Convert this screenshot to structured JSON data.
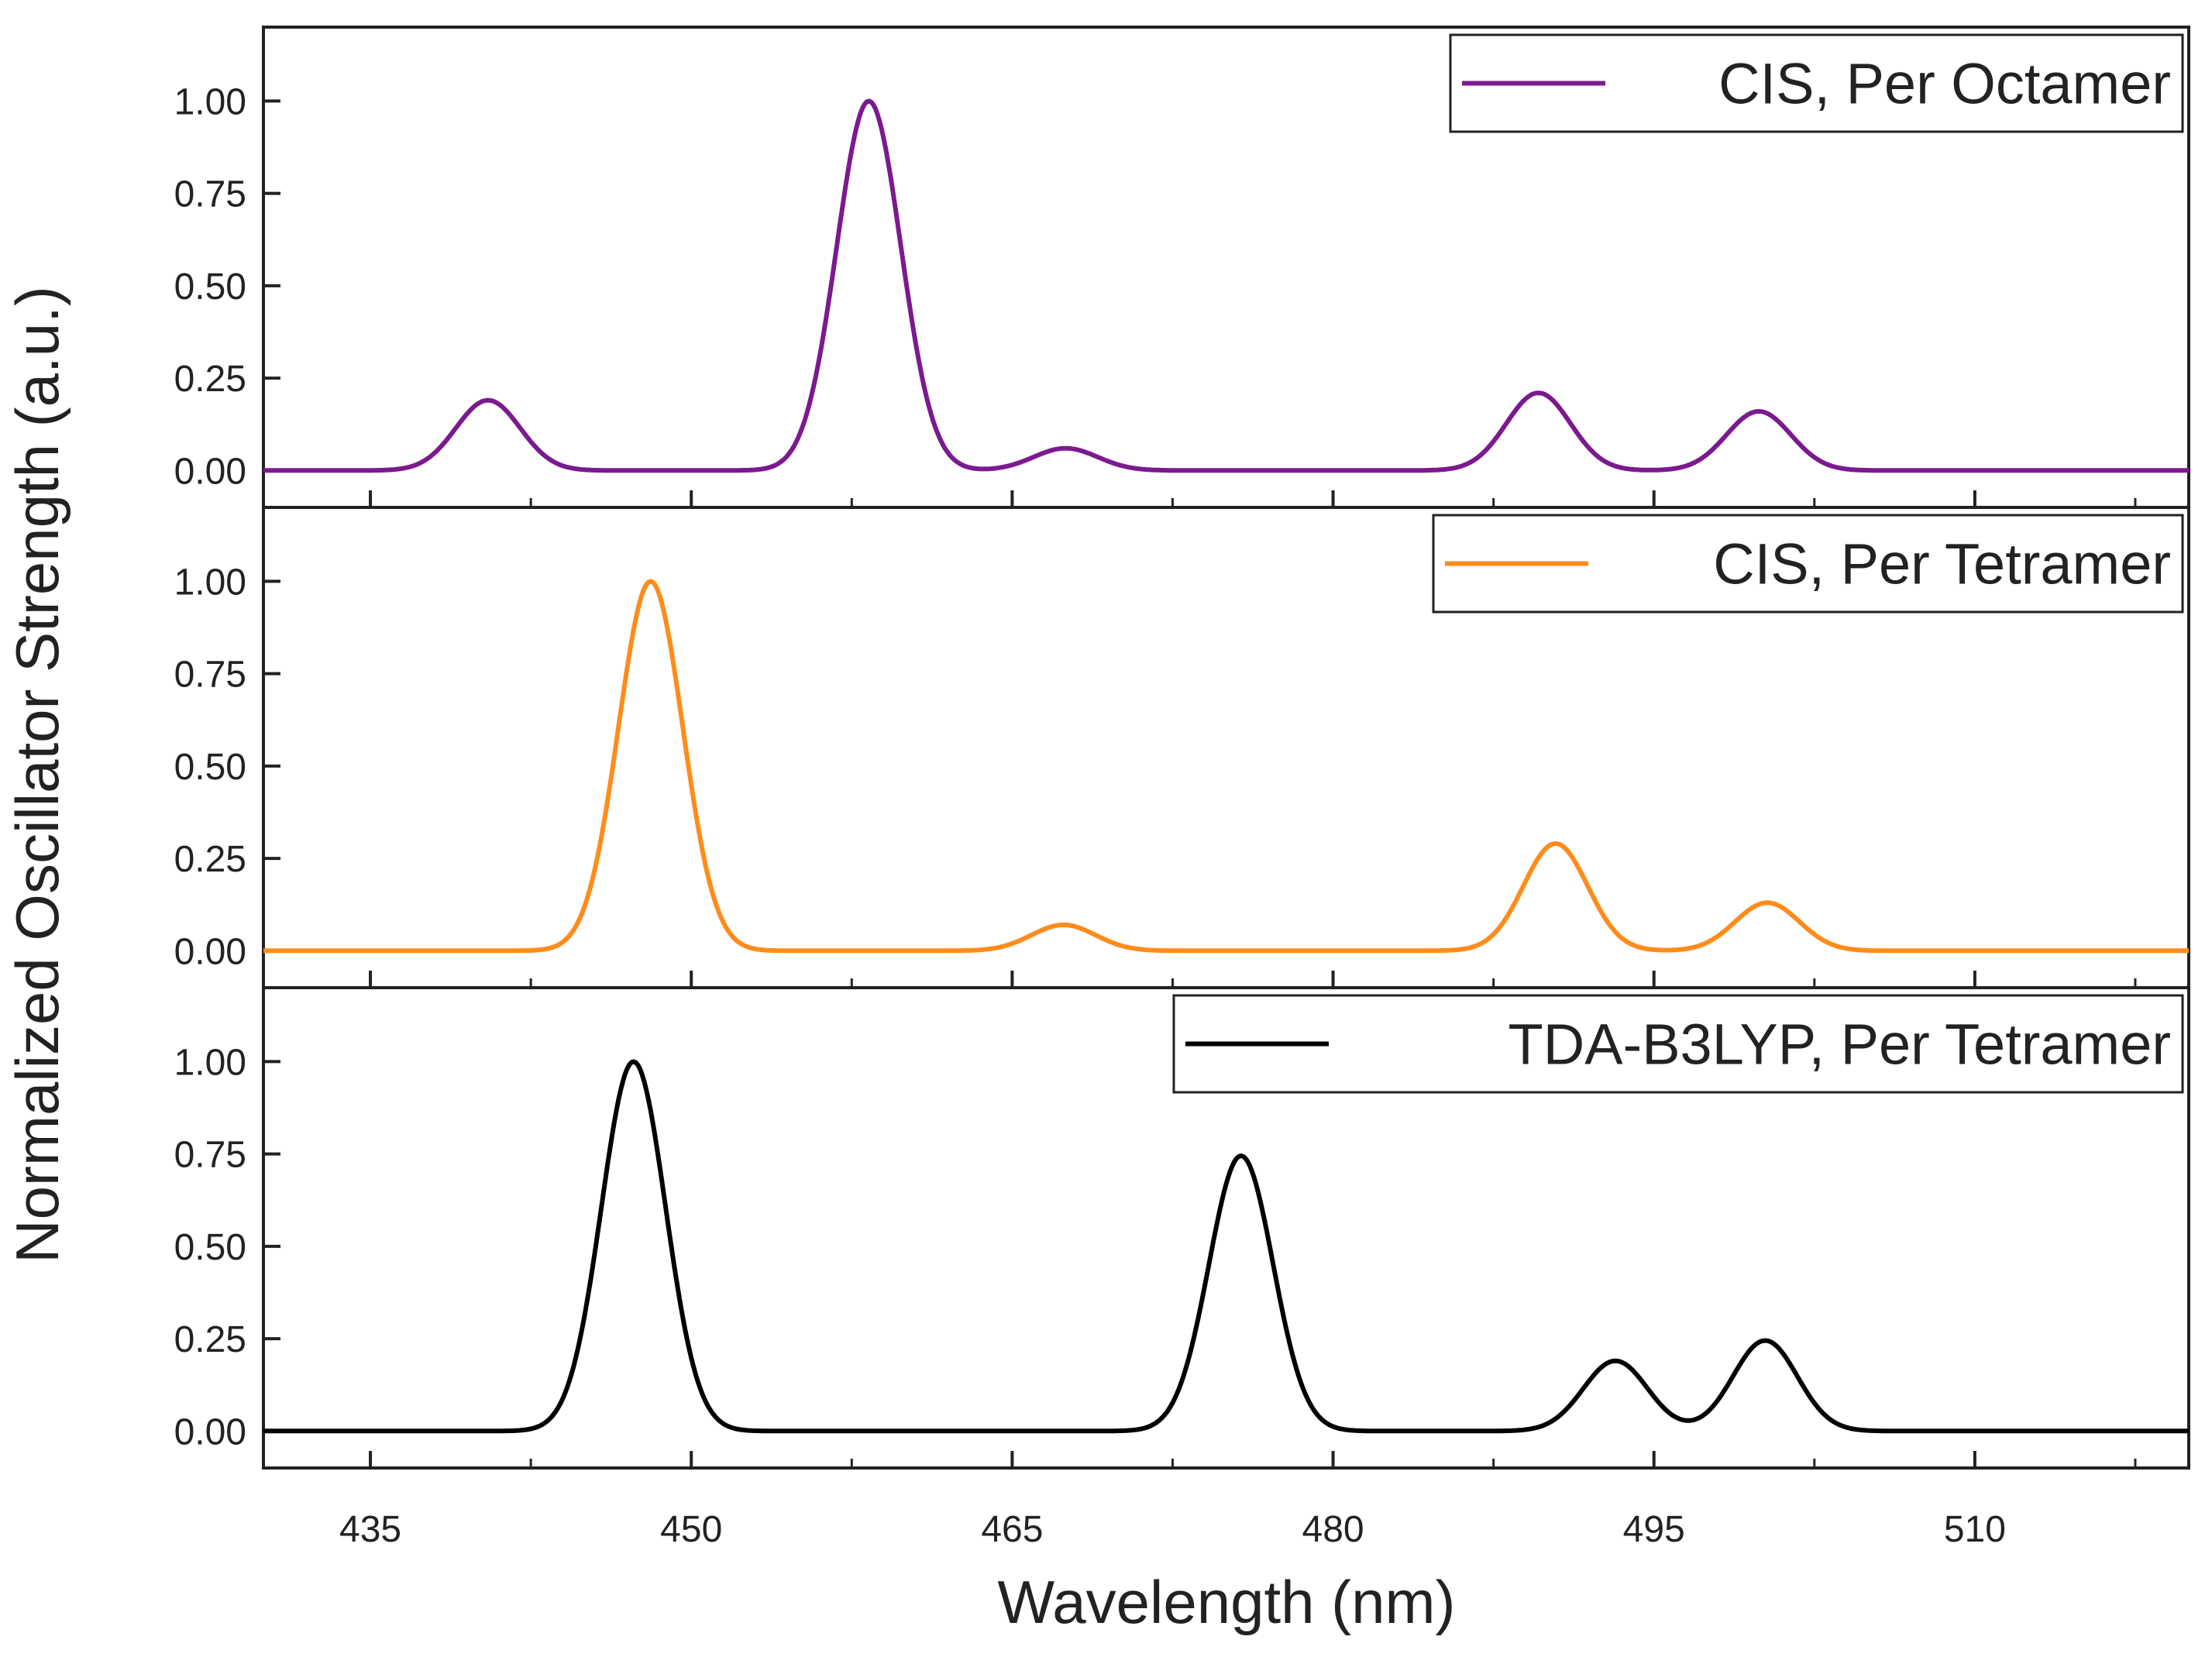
{
  "chart_data": {
    "type": "line",
    "xlabel": "Wavelength (nm)",
    "ylabel": "Normalized Oscillator Strength (a.u.)",
    "xlim": [
      430,
      520
    ],
    "ylim": [
      -0.1,
      1.2
    ],
    "x_ticks": [
      435,
      450,
      465,
      480,
      495,
      510
    ],
    "y_ticks": [
      "0.00",
      "0.25",
      "0.50",
      "0.75",
      "1.00"
    ],
    "panels": [
      {
        "name": "CIS, Per Octamer",
        "color": "#7b1a8f",
        "legend_position": "top-right",
        "peaks": [
          {
            "center": 440.5,
            "height": 0.19
          },
          {
            "center": 458.3,
            "height": 1.0
          },
          {
            "center": 467.5,
            "height": 0.06
          },
          {
            "center": 489.6,
            "height": 0.21
          },
          {
            "center": 499.9,
            "height": 0.16
          }
        ]
      },
      {
        "name": "CIS, Per Tetramer",
        "color": "#ff8c1a",
        "legend_position": "top-right",
        "peaks": [
          {
            "center": 448.1,
            "height": 1.0
          },
          {
            "center": 467.4,
            "height": 0.07
          },
          {
            "center": 490.4,
            "height": 0.29
          },
          {
            "center": 500.3,
            "height": 0.13
          }
        ]
      },
      {
        "name": "TDA-B3LYP, Per Tetramer",
        "color": "#000000",
        "legend_position": "top-right",
        "peaks": [
          {
            "center": 447.3,
            "height": 1.0
          },
          {
            "center": 475.7,
            "height": 0.745
          },
          {
            "center": 493.2,
            "height": 0.19
          },
          {
            "center": 500.2,
            "height": 0.245
          }
        ]
      }
    ]
  }
}
